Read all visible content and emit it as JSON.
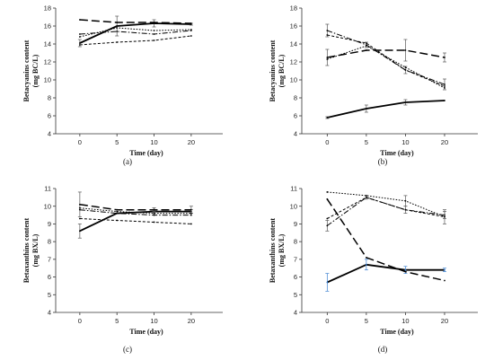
{
  "chart_data": [
    {
      "id": "a",
      "type": "line",
      "panel_label": "(a)",
      "xlabel": "Time (day)",
      "ylabel_lines": [
        "Betacyanins content",
        "(mg BC/L)"
      ],
      "categories": [
        "0",
        "5",
        "10",
        "20"
      ],
      "ylim": [
        4,
        18
      ],
      "yticks": [
        4,
        6,
        8,
        10,
        12,
        14,
        16,
        18
      ],
      "series": [
        {
          "style": "solid",
          "color": "#000000",
          "width": 1.8,
          "values": [
            14.1,
            16.0,
            16.3,
            16.2
          ],
          "err": [
            0.4,
            1.1,
            0.4,
            0.1
          ]
        },
        {
          "style": "longdash",
          "color": "#000000",
          "width": 1.5,
          "values": [
            16.7,
            16.4,
            16.4,
            16.3
          ],
          "err": [
            0,
            0,
            0,
            0
          ]
        },
        {
          "style": "dashdot",
          "color": "#000000",
          "width": 1.0,
          "values": [
            15.1,
            15.4,
            15.1,
            15.5
          ],
          "err": [
            0,
            0,
            0,
            0
          ]
        },
        {
          "style": "dashed",
          "color": "#000000",
          "width": 1.0,
          "values": [
            13.9,
            14.2,
            14.4,
            14.9
          ],
          "err": [
            0,
            0,
            0,
            0
          ]
        },
        {
          "style": "dotted",
          "color": "#000000",
          "width": 1.0,
          "values": [
            14.8,
            15.8,
            15.5,
            15.6
          ],
          "err": [
            0,
            0,
            0,
            0
          ]
        }
      ]
    },
    {
      "id": "b",
      "type": "line",
      "panel_label": "(b)",
      "xlabel": "Time (day)",
      "ylabel_lines": [
        "Betacyanins content",
        "(mg BC/L)"
      ],
      "categories": [
        "0",
        "5",
        "10",
        "20"
      ],
      "ylim": [
        4,
        18
      ],
      "yticks": [
        4,
        6,
        8,
        10,
        12,
        14,
        16,
        18
      ],
      "series": [
        {
          "style": "solid",
          "color": "#000000",
          "width": 1.8,
          "values": [
            5.8,
            6.8,
            7.5,
            7.7
          ],
          "err": [
            0.1,
            0.4,
            0.3,
            0
          ]
        },
        {
          "style": "longdash",
          "color": "#000000",
          "width": 1.5,
          "values": [
            12.5,
            13.3,
            13.3,
            12.5
          ],
          "err": [
            0.9,
            0,
            1.2,
            0.5
          ]
        },
        {
          "style": "dashdot",
          "color": "#000000",
          "width": 1.0,
          "values": [
            15.5,
            13.9,
            11.1,
            9.5
          ],
          "err": [
            0.7,
            0.3,
            0.4,
            0.6
          ]
        },
        {
          "style": "dashed",
          "color": "#000000",
          "width": 1.0,
          "values": [
            15.0,
            14.1,
            11.1,
            9.3
          ],
          "err": [
            0,
            0,
            0,
            0
          ]
        },
        {
          "style": "dotted",
          "color": "#000000",
          "width": 1.0,
          "values": [
            12.3,
            13.8,
            11.4,
            9.1
          ],
          "err": [
            0,
            0,
            0,
            0
          ]
        }
      ]
    },
    {
      "id": "c",
      "type": "line",
      "panel_label": "(c)",
      "xlabel": "Time (day)",
      "ylabel_lines": [
        "Betaxanthins content",
        "(mg BX/L)"
      ],
      "categories": [
        "0",
        "5",
        "10",
        "20"
      ],
      "ylim": [
        4,
        11
      ],
      "yticks": [
        4,
        5,
        6,
        7,
        8,
        9,
        10,
        11
      ],
      "series": [
        {
          "style": "solid",
          "color": "#000000",
          "width": 1.8,
          "values": [
            8.6,
            9.6,
            9.7,
            9.7
          ],
          "err": [
            0.4,
            0,
            0.2,
            0.1
          ]
        },
        {
          "style": "longdash",
          "color": "#000000",
          "width": 1.5,
          "values": [
            10.1,
            9.8,
            9.8,
            9.8
          ],
          "err": [
            0.7,
            0,
            0.1,
            0.2
          ]
        },
        {
          "style": "dashdot",
          "color": "#000000",
          "width": 1.0,
          "values": [
            9.8,
            9.6,
            9.5,
            9.5
          ],
          "err": [
            0,
            0,
            0,
            0
          ]
        },
        {
          "style": "dashed",
          "color": "#000000",
          "width": 1.0,
          "values": [
            9.3,
            9.2,
            9.1,
            9.0
          ],
          "err": [
            0,
            0,
            0,
            0
          ]
        },
        {
          "style": "dotted",
          "color": "#000000",
          "width": 1.0,
          "values": [
            9.9,
            9.7,
            9.6,
            9.6
          ],
          "err": [
            0,
            0,
            0,
            0
          ]
        }
      ]
    },
    {
      "id": "d",
      "type": "line",
      "panel_label": "(d)",
      "xlabel": "Time (day)",
      "ylabel_lines": [
        "Betaxanthins content",
        "(mg BX/L)"
      ],
      "categories": [
        "0",
        "5",
        "10",
        "20"
      ],
      "ylim": [
        4,
        11
      ],
      "yticks": [
        4,
        5,
        6,
        7,
        8,
        9,
        10,
        11
      ],
      "series": [
        {
          "style": "solid",
          "color": "#000000",
          "width": 1.8,
          "values": [
            5.7,
            6.7,
            6.4,
            6.4
          ],
          "err": [
            0.5,
            0.3,
            0.2,
            0.1
          ],
          "err_color": "#3a7fd0"
        },
        {
          "style": "longdash",
          "color": "#000000",
          "width": 1.5,
          "values": [
            10.4,
            7.1,
            6.3,
            5.8
          ],
          "err": [
            0,
            0,
            0,
            0
          ]
        },
        {
          "style": "dashdot",
          "color": "#000000",
          "width": 1.0,
          "values": [
            8.9,
            10.5,
            9.8,
            9.5
          ],
          "err": [
            0.3,
            0.1,
            0.2,
            0.2
          ]
        },
        {
          "style": "dashed",
          "color": "#000000",
          "width": 1.0,
          "values": [
            9.3,
            10.5,
            9.8,
            9.4
          ],
          "err": [
            0,
            0,
            0,
            0
          ]
        },
        {
          "style": "dotted",
          "color": "#000000",
          "width": 1.0,
          "values": [
            10.8,
            10.6,
            10.3,
            9.4
          ],
          "err": [
            0,
            0,
            0.3,
            0.4
          ]
        }
      ]
    }
  ]
}
